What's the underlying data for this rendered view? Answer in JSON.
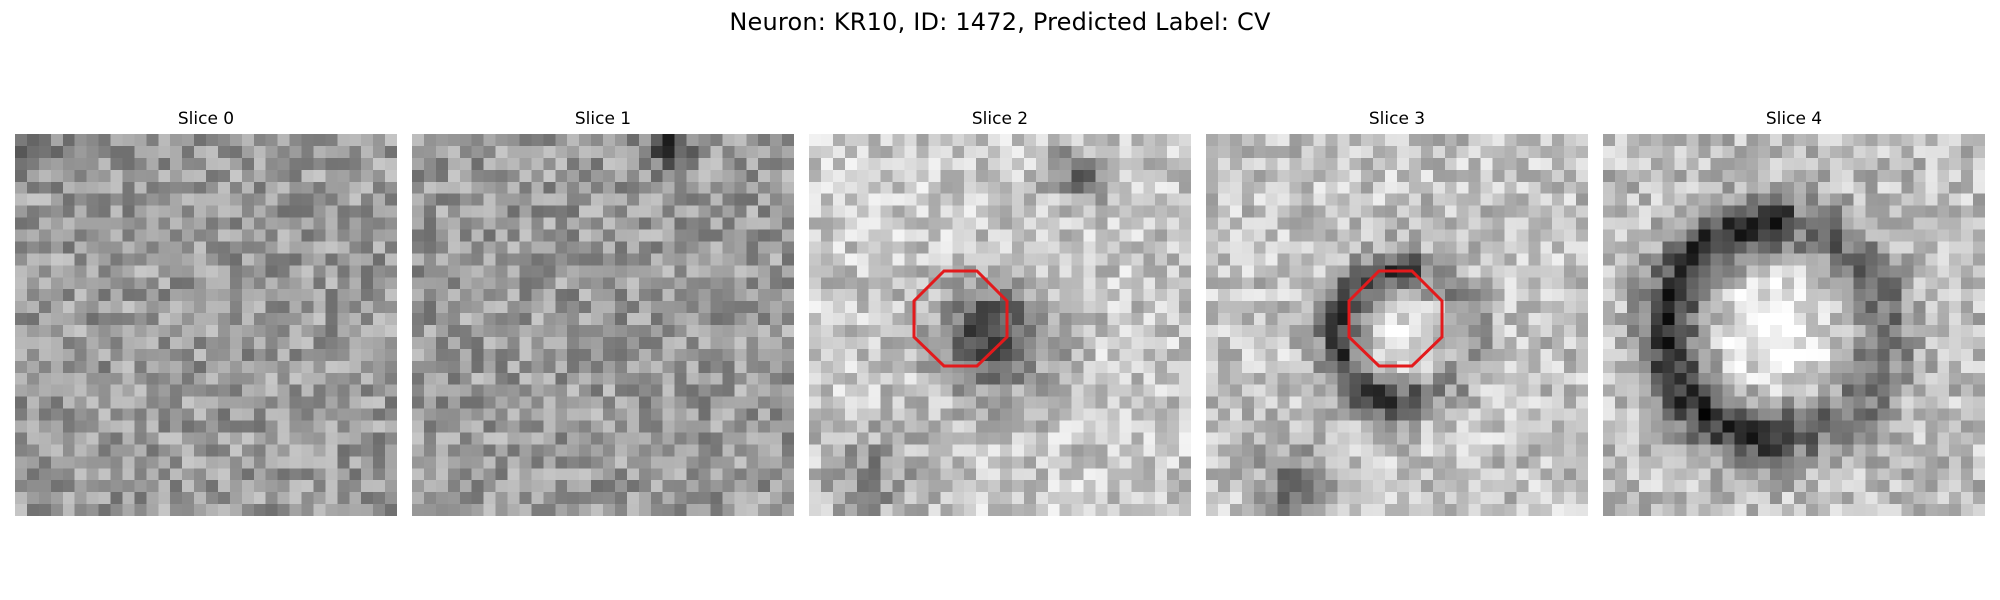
{
  "figure": {
    "title": "Neuron: KR10, ID: 1472, Predicted Label: CV"
  },
  "panels": [
    {
      "label": "Slice 0",
      "blob": "noise",
      "roi_outline": false
    },
    {
      "label": "Slice 1",
      "blob": "noise",
      "roi_outline": false
    },
    {
      "label": "Slice 2",
      "blob": "dark-center",
      "roi_outline": true
    },
    {
      "label": "Slice 3",
      "blob": "dark-ring-bright-center",
      "roi_outline": true
    },
    {
      "label": "Slice 4",
      "blob": "dark-ring-bright-center-large",
      "roi_outline": false
    }
  ],
  "colors": {
    "roi_outline": "#e31a1c",
    "colormap": "grayscale"
  }
}
